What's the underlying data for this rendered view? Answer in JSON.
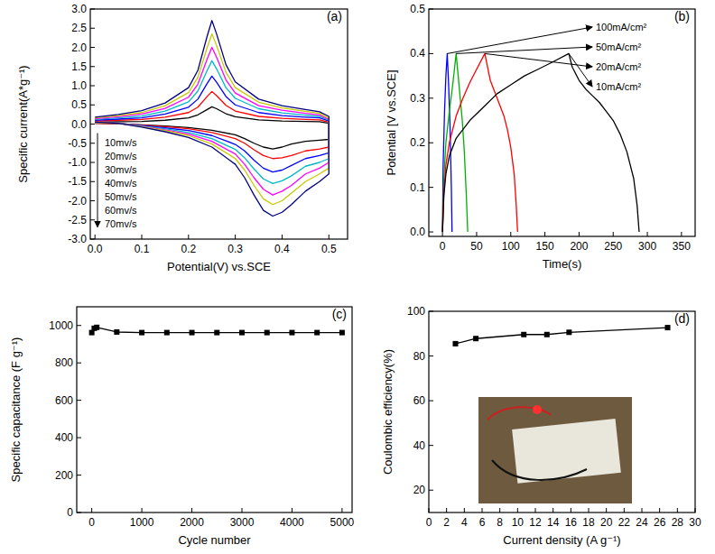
{
  "chart_data": [
    {
      "type": "line",
      "title": "(a)",
      "x_label": "Potential(V) vs.SCE",
      "y_label": "Specific current(A*g⁻¹)",
      "x": [
        0,
        0.05,
        0.1,
        0.15,
        0.2,
        0.22,
        0.24,
        0.25,
        0.26,
        0.28,
        0.3,
        0.35,
        0.4,
        0.45,
        0.48,
        0.5,
        0.5,
        0.48,
        0.45,
        0.42,
        0.4,
        0.38,
        0.36,
        0.34,
        0.32,
        0.3,
        0.25,
        0.2,
        0.15,
        0.1,
        0.05,
        0
      ],
      "xlim": [
        -0.01,
        0.54
      ],
      "xticks": [
        {
          "value": 0,
          "label": "0.0"
        },
        0.1,
        0.2,
        0.3,
        0.4,
        0.5
      ],
      "ylim": [
        -3,
        3
      ],
      "yticks": [
        {
          "value": -3,
          "label": "-3.0"
        },
        -2.5,
        {
          "value": -2,
          "label": "-2.0"
        },
        -1.5,
        {
          "value": -1,
          "label": "-1.0"
        },
        -0.5,
        {
          "value": 0,
          "label": "0.0"
        },
        0.5,
        {
          "value": 1,
          "label": "1.0"
        },
        1.5,
        {
          "value": 2,
          "label": "2.0"
        },
        2.5,
        {
          "value": 3,
          "label": "3.0"
        }
      ],
      "legend": "lower left",
      "series": [
        {
          "name": "10mv/s",
          "color": "#000000",
          "values": [
            0.05,
            0.06,
            0.07,
            0.1,
            0.16,
            0.24,
            0.38,
            0.45,
            0.4,
            0.27,
            0.19,
            0.11,
            0.08,
            0.07,
            0.06,
            0.02,
            -0.4,
            -0.42,
            -0.45,
            -0.52,
            -0.6,
            -0.65,
            -0.6,
            -0.5,
            -0.38,
            -0.28,
            -0.16,
            -0.09,
            -0.05,
            -0.02,
            0.01,
            0.02
          ]
        },
        {
          "name": "20mv/s",
          "color": "#ff0000",
          "values": [
            0.08,
            0.1,
            0.12,
            0.18,
            0.3,
            0.44,
            0.72,
            0.85,
            0.74,
            0.49,
            0.34,
            0.2,
            0.15,
            0.12,
            0.11,
            0.05,
            -0.6,
            -0.65,
            -0.7,
            -0.82,
            -0.88,
            -0.9,
            -0.82,
            -0.67,
            -0.5,
            -0.38,
            -0.22,
            -0.12,
            -0.07,
            -0.03,
            0.01,
            0.02
          ]
        },
        {
          "name": "30mv/s",
          "color": "#0000ff",
          "values": [
            0.1,
            0.13,
            0.16,
            0.26,
            0.44,
            0.65,
            1.06,
            1.25,
            1.09,
            0.72,
            0.5,
            0.3,
            0.22,
            0.18,
            0.16,
            0.08,
            -0.75,
            -0.82,
            -0.9,
            -1.08,
            -1.2,
            -1.25,
            -1.15,
            -0.94,
            -0.7,
            -0.53,
            -0.3,
            -0.17,
            -0.1,
            -0.04,
            0.02,
            0.03
          ]
        },
        {
          "name": "40mv/s",
          "color": "#00b8c8",
          "values": [
            0.12,
            0.16,
            0.21,
            0.34,
            0.58,
            0.86,
            1.4,
            1.65,
            1.44,
            0.95,
            0.67,
            0.4,
            0.29,
            0.23,
            0.2,
            0.1,
            -0.9,
            -1.0,
            -1.1,
            -1.35,
            -1.48,
            -1.55,
            -1.43,
            -1.17,
            -0.88,
            -0.66,
            -0.38,
            -0.22,
            -0.12,
            -0.05,
            0.02,
            0.03
          ]
        },
        {
          "name": "50mv/s",
          "color": "#ff00ff",
          "values": [
            0.14,
            0.19,
            0.26,
            0.41,
            0.7,
            1.04,
            1.7,
            2.0,
            1.74,
            1.15,
            0.81,
            0.48,
            0.36,
            0.28,
            0.24,
            0.12,
            -1.0,
            -1.15,
            -1.3,
            -1.6,
            -1.75,
            -1.85,
            -1.7,
            -1.4,
            -1.05,
            -0.78,
            -0.45,
            -0.26,
            -0.15,
            -0.06,
            0.02,
            0.04
          ]
        },
        {
          "name": "60mv/s",
          "color": "#c8c800",
          "values": [
            0.16,
            0.22,
            0.3,
            0.48,
            0.82,
            1.22,
            2.0,
            2.35,
            2.05,
            1.35,
            0.95,
            0.57,
            0.42,
            0.33,
            0.28,
            0.15,
            -1.15,
            -1.3,
            -1.5,
            -1.8,
            -2.0,
            -2.1,
            -1.95,
            -1.6,
            -1.2,
            -0.9,
            -0.52,
            -0.3,
            -0.17,
            -0.07,
            0.02,
            0.04
          ]
        },
        {
          "name": "70mv/s",
          "color": "#000080",
          "values": [
            0.18,
            0.25,
            0.35,
            0.55,
            0.95,
            1.4,
            2.3,
            2.7,
            2.35,
            1.55,
            1.1,
            0.65,
            0.48,
            0.38,
            0.32,
            0.2,
            -1.3,
            -1.5,
            -1.75,
            -2.1,
            -2.3,
            -2.4,
            -2.25,
            -1.85,
            -1.4,
            -1.05,
            -0.6,
            -0.35,
            -0.2,
            -0.08,
            0.02,
            0.05
          ]
        }
      ]
    },
    {
      "type": "line",
      "title": "(b)",
      "x_label": "Time(s)",
      "y_label": "Potential [V vs.SCE]",
      "xlim": [
        -20,
        370
      ],
      "xticks": [
        0,
        50,
        100,
        150,
        200,
        250,
        300,
        350
      ],
      "ylim": [
        -0.01,
        0.5
      ],
      "yticks": [
        {
          "value": 0,
          "label": "0.0"
        },
        0.1,
        0.2,
        0.3,
        0.4,
        0.5
      ],
      "series": [
        {
          "name": "100mA/cm²",
          "color": "#0000ff",
          "x": [
            0,
            1,
            3,
            5,
            7,
            9,
            11,
            13,
            14
          ],
          "values": [
            0,
            0.15,
            0.27,
            0.35,
            0.4,
            0.33,
            0.24,
            0.1,
            0
          ]
        },
        {
          "name": "50mA/cm²",
          "color": "#00b000",
          "x": [
            0,
            2,
            5,
            10,
            15,
            20,
            23,
            26,
            29,
            32,
            35,
            37
          ],
          "values": [
            0,
            0.12,
            0.2,
            0.27,
            0.33,
            0.4,
            0.35,
            0.3,
            0.25,
            0.18,
            0.08,
            0
          ]
        },
        {
          "name": "20mA/cm²",
          "color": "#ff0000",
          "x": [
            0,
            2,
            5,
            10,
            20,
            30,
            40,
            50,
            62,
            66,
            70,
            75,
            80,
            85,
            90,
            95,
            100,
            105,
            108,
            110
          ],
          "values": [
            0,
            0.09,
            0.15,
            0.2,
            0.26,
            0.3,
            0.335,
            0.365,
            0.4,
            0.37,
            0.34,
            0.32,
            0.3,
            0.28,
            0.26,
            0.23,
            0.19,
            0.13,
            0.06,
            0
          ]
        },
        {
          "name": "10mA/cm²",
          "color": "#000000",
          "x": [
            0,
            2,
            5,
            10,
            20,
            40,
            60,
            80,
            100,
            120,
            140,
            160,
            185,
            190,
            200,
            210,
            220,
            230,
            240,
            250,
            260,
            270,
            280,
            285,
            288
          ],
          "values": [
            0,
            0.08,
            0.13,
            0.17,
            0.21,
            0.25,
            0.28,
            0.31,
            0.33,
            0.35,
            0.365,
            0.38,
            0.4,
            0.37,
            0.34,
            0.32,
            0.305,
            0.29,
            0.27,
            0.25,
            0.22,
            0.18,
            0.12,
            0.06,
            0
          ]
        }
      ]
    },
    {
      "type": "line",
      "title": "(c)",
      "x_label": "Cycle number",
      "y_label": "Specific capacitance (F g⁻¹)",
      "marker": "square",
      "color": "#000000",
      "xlim": [
        -300,
        5200
      ],
      "xticks": [
        0,
        1000,
        2000,
        3000,
        4000,
        5000
      ],
      "ylim": [
        0,
        1100
      ],
      "yticks": [
        0,
        200,
        400,
        600,
        800,
        1000
      ],
      "x": [
        0,
        50,
        100,
        500,
        1000,
        1500,
        2000,
        2500,
        3000,
        3500,
        4000,
        4500,
        5000
      ],
      "values": [
        962,
        985,
        990,
        965,
        962,
        962,
        962,
        962,
        962,
        962,
        962,
        962,
        962
      ]
    },
    {
      "type": "line",
      "title": "(d)",
      "x_label": "Current density (A g⁻¹)",
      "y_label": "Coulombic efficiency(%)",
      "marker": "square",
      "color": "#000000",
      "xlim": [
        0,
        30
      ],
      "xticks": [
        0,
        2,
        4,
        6,
        8,
        10,
        12,
        14,
        16,
        18,
        20,
        22,
        24,
        26,
        28,
        30
      ],
      "ylim": [
        10,
        100
      ],
      "yticks": [
        20,
        40,
        60,
        80,
        100
      ],
      "x": [
        3,
        5.3,
        10.7,
        13.3,
        15.8,
        26.9
      ],
      "values": [
        85.5,
        87.8,
        89.6,
        89.6,
        90.6,
        92.7
      ]
    }
  ]
}
